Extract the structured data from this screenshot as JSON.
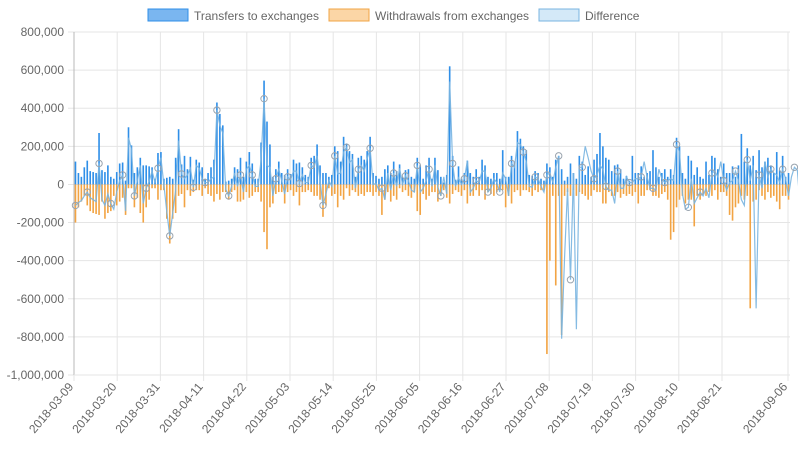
{
  "chart_data": {
    "type": "bar",
    "title": "",
    "xlabel": "",
    "ylabel": "",
    "ylim": [
      -1000000,
      800000
    ],
    "y_ticks": [
      800000,
      600000,
      400000,
      200000,
      0,
      -200000,
      -400000,
      -600000,
      -800000,
      -1000000
    ],
    "y_tick_labels": [
      "800,000",
      "600,000",
      "400,000",
      "200,000",
      "0",
      "-200,000",
      "-400,000",
      "-600,000",
      "-800,000",
      "-1,000,000"
    ],
    "x_tick_labels": [
      "2018-03-09",
      "2018-03-20",
      "2018-03-31",
      "2018-04-11",
      "2018-04-22",
      "2018-05-03",
      "2018-05-14",
      "2018-05-25",
      "2018-06-05",
      "2018-06-16",
      "2018-06-27",
      "2018-07-08",
      "2018-07-19",
      "2018-07-30",
      "2018-08-10",
      "2018-08-21",
      "2018-09-06"
    ],
    "grid": true,
    "legend_position": "top-center",
    "colors": {
      "transfers": "#2f8fe8",
      "transfers_fill": "#7ab6f0",
      "withdrawals": "#f2a444",
      "withdrawals_fill": "#fbd6a6",
      "difference": "#78b4e0",
      "difference_fill": "#d4e9f8",
      "grid": "#e5e5e5",
      "axis": "#b8b8b8"
    },
    "x_start": "2018-03-09",
    "x_end": "2018-09-06",
    "series": [
      {
        "name": "Transfers to exchanges",
        "type": "bar",
        "values": [
          120000,
          60000,
          40000,
          90000,
          125000,
          70000,
          65000,
          60000,
          270000,
          75000,
          65000,
          100000,
          40000,
          30000,
          65000,
          110000,
          115000,
          20000,
          300000,
          205000,
          60000,
          90000,
          140000,
          100000,
          100000,
          95000,
          90000,
          30000,
          165000,
          170000,
          30000,
          35000,
          40000,
          30000,
          140000,
          290000,
          105000,
          150000,
          80000,
          145000,
          25000,
          130000,
          115000,
          90000,
          30000,
          60000,
          90000,
          130000,
          430000,
          370000,
          310000,
          15000,
          20000,
          30000,
          90000,
          80000,
          140000,
          40000,
          120000,
          170000,
          110000,
          30000,
          30000,
          220000,
          545000,
          330000,
          210000,
          40000,
          80000,
          120000,
          60000,
          50000,
          80000,
          55000,
          130000,
          110000,
          115000,
          90000,
          50000,
          40000,
          140000,
          150000,
          210000,
          100000,
          60000,
          60000,
          40000,
          50000,
          200000,
          175000,
          120000,
          250000,
          215000,
          175000,
          160000,
          40000,
          140000,
          150000,
          130000,
          175000,
          250000,
          60000,
          45000,
          30000,
          40000,
          80000,
          100000,
          60000,
          120000,
          70000,
          105000,
          40000,
          75000,
          80000,
          40000,
          30000,
          140000,
          100000,
          30000,
          100000,
          140000,
          30000,
          140000,
          75000,
          40000,
          10000,
          50000,
          620000,
          150000,
          25000,
          95000,
          30000,
          60000,
          125000,
          60000,
          40000,
          80000,
          40000,
          130000,
          100000,
          40000,
          30000,
          60000,
          60000,
          30000,
          180000,
          40000,
          40000,
          150000,
          120000,
          280000,
          240000,
          200000,
          180000,
          50000,
          45000,
          70000,
          60000,
          30000,
          20000,
          110000,
          90000,
          40000,
          130000,
          150000,
          80000,
          20000,
          40000,
          110000,
          60000,
          30000,
          150000,
          120000,
          50000,
          95000,
          40000,
          130000,
          160000,
          270000,
          200000,
          140000,
          130000,
          70000,
          100000,
          105000,
          80000,
          30000,
          45000,
          20000,
          150000,
          60000,
          60000,
          95000,
          40000,
          60000,
          70000,
          180000,
          90000,
          40000,
          60000,
          80000,
          40000,
          80000,
          50000,
          245000,
          200000,
          60000,
          30000,
          150000,
          125000,
          50000,
          90000,
          40000,
          30000,
          120000,
          50000,
          150000,
          140000,
          80000,
          40000,
          110000,
          60000,
          60000,
          95000,
          40000,
          100000,
          265000,
          120000,
          190000,
          100000,
          150000,
          75000,
          180000,
          90000,
          120000,
          140000,
          100000,
          60000,
          170000,
          75000,
          150000,
          40000,
          60000
        ]
      },
      {
        "name": "Withdrawals from exchanges",
        "type": "bar",
        "values": [
          -200000,
          -120000,
          -90000,
          -60000,
          -110000,
          -140000,
          -150000,
          -155000,
          -160000,
          -90000,
          -180000,
          -150000,
          -140000,
          -60000,
          -110000,
          -90000,
          -70000,
          -160000,
          -20000,
          -20000,
          -120000,
          -70000,
          -150000,
          -200000,
          -120000,
          -80000,
          -20000,
          -20000,
          -80000,
          -30000,
          -30000,
          -180000,
          -310000,
          -180000,
          -150000,
          -60000,
          -50000,
          -120000,
          -30000,
          -60000,
          -40000,
          -30000,
          -30000,
          -60000,
          -20000,
          -50000,
          -60000,
          -90000,
          -50000,
          -80000,
          -40000,
          -40000,
          -80000,
          -40000,
          -30000,
          -90000,
          -90000,
          -80000,
          -40000,
          -70000,
          -60000,
          -40000,
          -40000,
          -90000,
          -250000,
          -340000,
          -120000,
          -100000,
          -50000,
          -40000,
          -40000,
          -100000,
          -40000,
          -30000,
          -60000,
          -40000,
          -110000,
          -40000,
          -40000,
          -30000,
          -40000,
          -60000,
          -60000,
          -80000,
          -170000,
          -110000,
          -20000,
          -60000,
          -50000,
          -120000,
          -60000,
          -80000,
          -20000,
          -60000,
          -30000,
          -40000,
          -60000,
          -50000,
          -60000,
          -40000,
          -40000,
          -60000,
          -40000,
          -60000,
          -160000,
          -80000,
          -40000,
          -90000,
          -60000,
          -80000,
          -20000,
          -40000,
          -30000,
          -60000,
          -70000,
          -40000,
          -140000,
          -160000,
          -50000,
          -80000,
          -60000,
          -40000,
          -40000,
          -90000,
          -60000,
          -30000,
          -70000,
          -100000,
          -50000,
          -30000,
          -40000,
          -60000,
          -30000,
          -100000,
          -60000,
          -60000,
          -30000,
          -60000,
          -30000,
          -80000,
          -40000,
          -50000,
          -60000,
          -40000,
          -30000,
          -30000,
          -120000,
          -60000,
          -100000,
          -40000,
          -30000,
          -60000,
          -30000,
          -30000,
          -40000,
          -60000,
          -30000,
          -40000,
          -30000,
          -30000,
          -890000,
          -400000,
          -60000,
          -530000,
          -60000,
          -790000,
          -60000,
          -40000,
          -60000,
          -30000,
          -60000,
          -40000,
          -50000,
          -60000,
          -80000,
          -60000,
          -30000,
          -40000,
          -40000,
          -100000,
          -100000,
          -40000,
          -60000,
          -60000,
          -40000,
          -70000,
          -50000,
          -60000,
          -50000,
          -60000,
          -40000,
          -100000,
          -60000,
          -60000,
          -30000,
          -30000,
          -60000,
          -60000,
          -70000,
          -50000,
          -40000,
          -80000,
          -290000,
          -250000,
          -120000,
          -80000,
          -60000,
          -100000,
          -80000,
          -80000,
          -220000,
          -60000,
          -80000,
          -50000,
          -60000,
          -40000,
          -60000,
          -30000,
          -80000,
          -40000,
          -40000,
          -60000,
          -160000,
          -190000,
          -120000,
          -100000,
          -60000,
          -80000,
          -60000,
          -650000,
          -90000,
          -80000,
          -30000,
          -60000,
          -80000,
          -40000,
          -70000,
          -60000,
          -90000,
          -130000,
          -60000,
          -60000,
          -80000,
          -60000,
          -170000
        ]
      },
      {
        "name": "Difference",
        "type": "line",
        "values": [
          -110000,
          -95000,
          -85000,
          -60000,
          -40000,
          -70000,
          -80000,
          -90000,
          110000,
          -80000,
          -110000,
          -50000,
          -100000,
          -130000,
          -40000,
          20000,
          50000,
          -140000,
          245000,
          185000,
          -60000,
          20000,
          100000,
          -100000,
          -20000,
          15000,
          70000,
          10000,
          85000,
          140000,
          0,
          -145000,
          -270000,
          -150000,
          -30000,
          230000,
          55000,
          30000,
          50000,
          85000,
          -15000,
          100000,
          85000,
          30000,
          10000,
          10000,
          30000,
          40000,
          390000,
          310000,
          270000,
          -25000,
          -60000,
          -10000,
          60000,
          -10000,
          50000,
          -40000,
          80000,
          100000,
          50000,
          -10000,
          -10000,
          130000,
          450000,
          100000,
          90000,
          -60000,
          30000,
          80000,
          20000,
          -50000,
          40000,
          25000,
          70000,
          70000,
          5000,
          50000,
          10000,
          10000,
          100000,
          90000,
          150000,
          20000,
          -110000,
          -50000,
          20000,
          -10000,
          150000,
          55000,
          60000,
          170000,
          195000,
          115000,
          130000,
          -20000,
          80000,
          100000,
          70000,
          135000,
          190000,
          0,
          5000,
          -30000,
          -20000,
          -80000,
          60000,
          -30000,
          60000,
          -10000,
          85000,
          0,
          45000,
          20000,
          -30000,
          -40000,
          100000,
          -40000,
          -20000,
          20000,
          80000,
          -10000,
          100000,
          -15000,
          -60000,
          40000,
          -50000,
          540000,
          110000,
          -10000,
          35000,
          0,
          30000,
          125000,
          -40000,
          -20000,
          20000,
          10000,
          70000,
          70000,
          -40000,
          -20000,
          30000,
          10000,
          -40000,
          60000,
          30000,
          -60000,
          110000,
          90000,
          220000,
          210000,
          170000,
          120000,
          -10000,
          -15000,
          40000,
          30000,
          -10000,
          -40000,
          50000,
          60000,
          10000,
          90000,
          150000,
          -810000,
          -380000,
          -20000,
          -500000,
          60000,
          -760000,
          90000,
          90000,
          200000,
          140000,
          70000,
          30000,
          50000,
          100000,
          80000,
          -10000,
          -30000,
          -30000,
          -100000,
          70000,
          -20000,
          -20000,
          40000,
          10000,
          10000,
          30000,
          30000,
          40000,
          120000,
          40000,
          -20000,
          -20000,
          -30000,
          80000,
          30000,
          10000,
          20000,
          30000,
          20000,
          210000,
          170000,
          -50000,
          -130000,
          -120000,
          30000,
          -100000,
          -70000,
          -40000,
          -60000,
          -20000,
          -70000,
          60000,
          70000,
          40000,
          120000,
          20000,
          -30000,
          10000,
          20000,
          70000,
          20000,
          -80000,
          -110000,
          130000,
          20000,
          100000,
          -650000,
          50000,
          -20000,
          120000,
          40000,
          80000,
          60000,
          50000,
          10000,
          80000,
          30000,
          -60000,
          40000,
          90000,
          75000,
          -130000
        ]
      }
    ]
  }
}
